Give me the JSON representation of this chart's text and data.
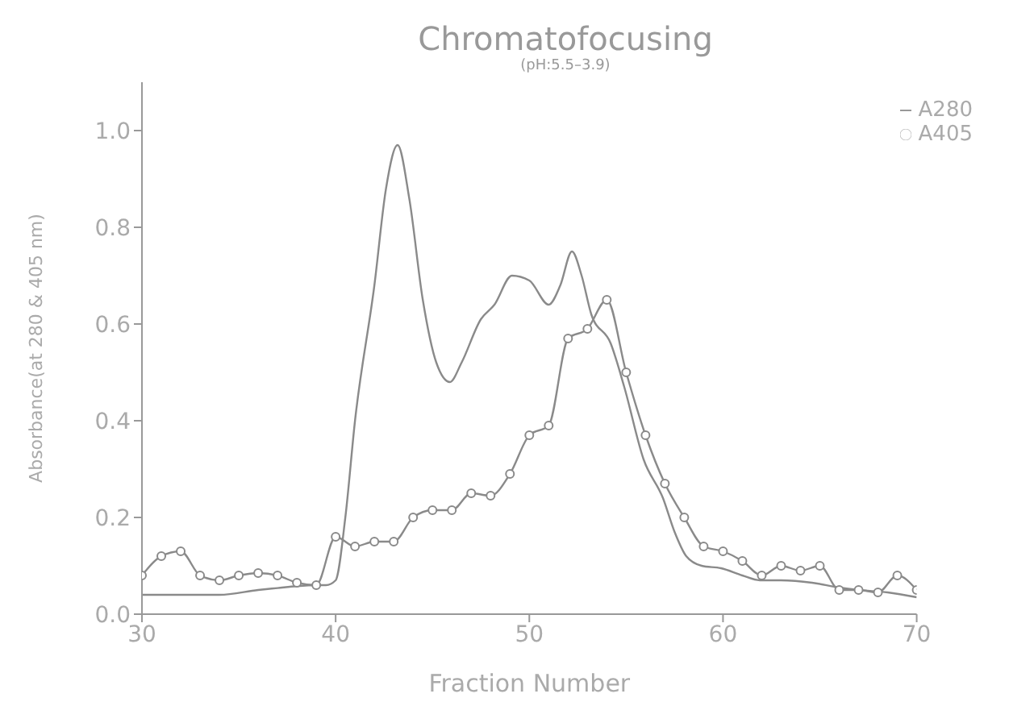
{
  "chart_data": {
    "type": "line",
    "title": "Chromatofocusing",
    "subtitle": "(pH:5.5–3.9)",
    "xlabel": "Fraction Number",
    "ylabel": "Absorbance(at 280 & 405 nm)",
    "xlim": [
      30,
      70
    ],
    "xticks": [
      30,
      40,
      50,
      60,
      70
    ],
    "ylim": [
      0,
      1.1
    ],
    "yticks": [
      {
        "value": 0,
        "label": "0.0"
      },
      0.2,
      0.4,
      0.6,
      0.8,
      {
        "value": 1,
        "label": "1.0"
      }
    ],
    "legend": "top right",
    "line_style": "solid",
    "series": [
      {
        "name": "A280",
        "color": "#8a8a8a",
        "marker": "none",
        "x": [
          30,
          32,
          34,
          36,
          37,
          38,
          39,
          39.5,
          40,
          40.5,
          41,
          42,
          42.6,
          43.2,
          43.8,
          44.5,
          45.2,
          45.9,
          46.5,
          47.5,
          48.2,
          49.1,
          50,
          51,
          51.6,
          52.2,
          52.7,
          53.2,
          54.2,
          54.9,
          55.9,
          56.9,
          57.5,
          58.1,
          58.9,
          59.9,
          61,
          61.9,
          63,
          64.6,
          66,
          67,
          68.5,
          70
        ],
        "values": [
          0.04,
          0.04,
          0.04,
          0.05,
          0.054,
          0.058,
          0.06,
          0.06,
          0.07,
          0.2,
          0.4,
          0.68,
          0.88,
          0.97,
          0.86,
          0.65,
          0.52,
          0.48,
          0.52,
          0.61,
          0.64,
          0.7,
          0.69,
          0.64,
          0.68,
          0.75,
          0.7,
          0.62,
          0.56,
          0.47,
          0.32,
          0.24,
          0.17,
          0.12,
          0.1,
          0.095,
          0.08,
          0.07,
          0.07,
          0.065,
          0.055,
          0.05,
          0.045,
          0.035
        ]
      },
      {
        "name": "A405",
        "color": "#8a8a8a",
        "marker": "circle",
        "x": [
          30,
          31,
          32,
          33,
          34,
          35,
          36,
          37,
          38,
          39,
          40,
          41,
          42,
          43,
          44,
          45,
          46,
          47,
          48,
          49,
          50,
          51,
          52,
          53,
          54,
          55,
          56,
          57,
          58,
          59,
          60,
          61,
          62,
          63,
          64,
          65,
          66,
          67,
          68,
          69,
          70
        ],
        "values": [
          0.08,
          0.12,
          0.13,
          0.08,
          0.07,
          0.08,
          0.085,
          0.08,
          0.065,
          0.06,
          0.16,
          0.14,
          0.15,
          0.15,
          0.2,
          0.215,
          0.215,
          0.25,
          0.245,
          0.29,
          0.37,
          0.39,
          0.57,
          0.59,
          0.65,
          0.5,
          0.37,
          0.27,
          0.2,
          0.14,
          0.13,
          0.11,
          0.08,
          0.1,
          0.09,
          0.1,
          0.05,
          0.05,
          0.045,
          0.08,
          0.05
        ]
      }
    ]
  }
}
